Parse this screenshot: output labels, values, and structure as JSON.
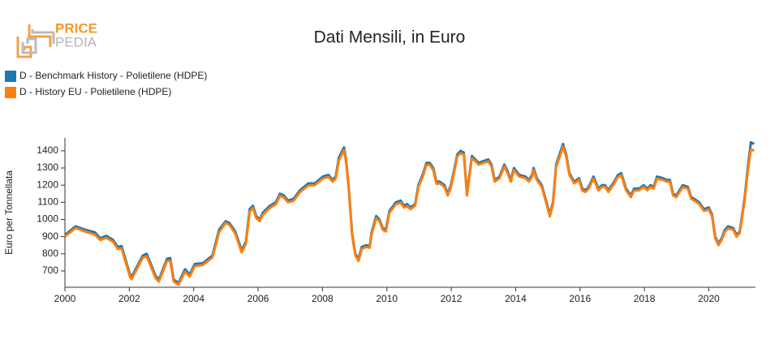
{
  "logo": {
    "top": "PRICE",
    "bottom": "PEDIA"
  },
  "chart_data": {
    "type": "line",
    "title": "Dati Mensili, in Euro",
    "y_label": "Euro per Tonnellata",
    "x": [
      2000.0,
      2000.33,
      2000.63,
      2000.93,
      2001.1,
      2001.28,
      2001.5,
      2001.64,
      2001.76,
      2002.02,
      2002.07,
      2002.42,
      2002.54,
      2002.82,
      2002.92,
      2003.17,
      2003.27,
      2003.38,
      2003.53,
      2003.73,
      2003.88,
      2004.03,
      2004.28,
      2004.58,
      2004.79,
      2004.99,
      2005.11,
      2005.29,
      2005.49,
      2005.62,
      2005.74,
      2005.84,
      2005.94,
      2006.05,
      2006.15,
      2006.37,
      2006.55,
      2006.68,
      2006.8,
      2006.93,
      2007.1,
      2007.3,
      2007.56,
      2007.76,
      2008.01,
      2008.19,
      2008.31,
      2008.41,
      2008.51,
      2008.67,
      2008.74,
      2008.82,
      2008.92,
      2009.02,
      2009.12,
      2009.22,
      2009.37,
      2009.47,
      2009.52,
      2009.67,
      2009.77,
      2009.87,
      2009.97,
      2010.08,
      2010.28,
      2010.43,
      2010.53,
      2010.63,
      2010.73,
      2010.88,
      2010.98,
      2011.13,
      2011.23,
      2011.33,
      2011.44,
      2011.54,
      2011.64,
      2011.79,
      2011.89,
      2011.99,
      2012.09,
      2012.19,
      2012.29,
      2012.39,
      2012.49,
      2012.64,
      2012.85,
      2013.0,
      2013.15,
      2013.25,
      2013.35,
      2013.5,
      2013.65,
      2013.75,
      2013.85,
      2013.95,
      2014.11,
      2014.31,
      2014.41,
      2014.51,
      2014.56,
      2014.66,
      2014.81,
      2014.96,
      2015.06,
      2015.16,
      2015.26,
      2015.47,
      2015.57,
      2015.67,
      2015.82,
      2015.97,
      2016.07,
      2016.17,
      2016.27,
      2016.42,
      2016.57,
      2016.68,
      2016.78,
      2016.88,
      2017.03,
      2017.18,
      2017.28,
      2017.43,
      2017.58,
      2017.68,
      2017.83,
      2017.98,
      2018.09,
      2018.19,
      2018.29,
      2018.39,
      2018.59,
      2018.69,
      2018.79,
      2018.89,
      2018.99,
      2019.19,
      2019.35,
      2019.45,
      2019.55,
      2019.7,
      2019.85,
      2020.0,
      2020.1,
      2020.2,
      2020.3,
      2020.4,
      2020.5,
      2020.6,
      2020.76,
      2020.86,
      2020.96,
      2021.11,
      2021.21,
      2021.31,
      2021.41
    ],
    "series": [
      {
        "name": "D - Benchmark History - Polietilene (HDPE)",
        "color": "#1f77b4",
        "values": [
          910,
          960,
          940,
          925,
          890,
          905,
          880,
          840,
          845,
          680,
          665,
          790,
          800,
          670,
          650,
          770,
          775,
          650,
          630,
          710,
          680,
          740,
          745,
          790,
          940,
          990,
          980,
          930,
          820,
          870,
          1060,
          1080,
          1020,
          1000,
          1040,
          1080,
          1100,
          1150,
          1140,
          1110,
          1120,
          1170,
          1210,
          1210,
          1250,
          1260,
          1230,
          1250,
          1360,
          1420,
          1340,
          1180,
          920,
          800,
          770,
          840,
          850,
          845,
          920,
          1020,
          1000,
          950,
          940,
          1050,
          1100,
          1110,
          1080,
          1090,
          1070,
          1090,
          1200,
          1270,
          1330,
          1330,
          1300,
          1220,
          1220,
          1200,
          1150,
          1200,
          1290,
          1380,
          1400,
          1390,
          1150,
          1370,
          1330,
          1340,
          1350,
          1320,
          1230,
          1250,
          1320,
          1280,
          1230,
          1300,
          1260,
          1250,
          1230,
          1260,
          1300,
          1240,
          1200,
          1100,
          1030,
          1100,
          1320,
          1440,
          1380,
          1270,
          1220,
          1240,
          1180,
          1170,
          1190,
          1250,
          1180,
          1200,
          1200,
          1170,
          1210,
          1260,
          1270,
          1180,
          1140,
          1180,
          1180,
          1200,
          1180,
          1200,
          1190,
          1250,
          1240,
          1230,
          1230,
          1150,
          1140,
          1200,
          1190,
          1130,
          1120,
          1100,
          1060,
          1070,
          1030,
          900,
          860,
          890,
          940,
          960,
          950,
          910,
          930,
          1120,
          1300,
          1450,
          1440
        ]
      },
      {
        "name": "D - History EU - Polietilene (HDPE)",
        "color": "#ff7f0e",
        "values": [
          900,
          950,
          930,
          912,
          880,
          893,
          870,
          828,
          832,
          668,
          652,
          778,
          785,
          657,
          638,
          758,
          760,
          638,
          620,
          696,
          668,
          728,
          735,
          778,
          925,
          980,
          968,
          918,
          808,
          858,
          1045,
          1068,
          1008,
          990,
          1028,
          1068,
          1088,
          1138,
          1128,
          1100,
          1108,
          1158,
          1198,
          1200,
          1238,
          1248,
          1220,
          1238,
          1345,
          1405,
          1328,
          1168,
          908,
          790,
          758,
          828,
          840,
          835,
          908,
          1008,
          990,
          940,
          930,
          1038,
          1088,
          1098,
          1070,
          1078,
          1060,
          1080,
          1188,
          1258,
          1318,
          1318,
          1288,
          1208,
          1210,
          1190,
          1140,
          1188,
          1278,
          1368,
          1385,
          1378,
          1140,
          1358,
          1320,
          1330,
          1338,
          1310,
          1220,
          1240,
          1308,
          1270,
          1220,
          1288,
          1250,
          1240,
          1220,
          1248,
          1288,
          1230,
          1190,
          1090,
          1018,
          1088,
          1305,
          1425,
          1368,
          1260,
          1210,
          1230,
          1168,
          1160,
          1180,
          1238,
          1170,
          1190,
          1190,
          1160,
          1200,
          1248,
          1258,
          1170,
          1130,
          1168,
          1170,
          1190,
          1170,
          1190,
          1180,
          1238,
          1230,
          1220,
          1220,
          1140,
          1130,
          1188,
          1180,
          1120,
          1110,
          1090,
          1050,
          1058,
          1020,
          890,
          850,
          880,
          928,
          948,
          940,
          900,
          920,
          1105,
          1280,
          1410,
          1400
        ]
      }
    ],
    "xlim": [
      2000,
      2021.45
    ],
    "xticks": [
      2000,
      2002,
      2004,
      2006,
      2008,
      2010,
      2012,
      2014,
      2016,
      2018,
      2020
    ],
    "ylim": [
      605,
      1475
    ],
    "yticks": [
      700,
      800,
      900,
      1000,
      1100,
      1200,
      1300,
      1400
    ],
    "grid": false,
    "legend": "top-left"
  }
}
